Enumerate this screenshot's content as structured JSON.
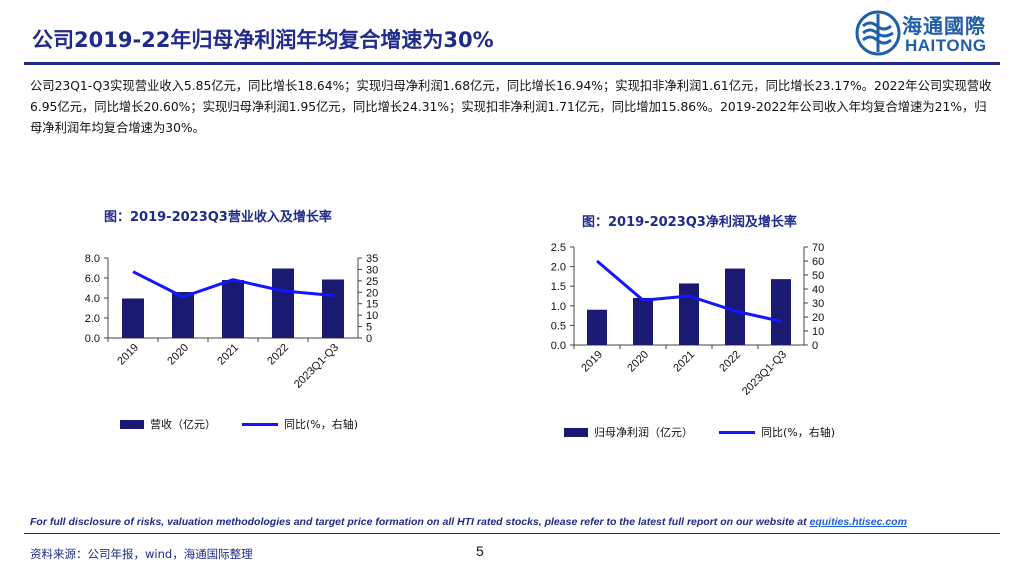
{
  "header": {
    "title": "公司2019-22年归母净利润年均复合增速为30%",
    "logo_cn": "海通國際",
    "logo_en": "HAITONG",
    "brand_color": "#1f2a8a",
    "logo_color": "#1f5fa8"
  },
  "body": {
    "paragraph": "公司23Q1-Q3实现营业收入5.85亿元，同比增长18.64%；实现归母净利润1.68亿元，同比增长16.94%；实现扣非净利润1.61亿元，同比增长23.17%。2022年公司实现营收6.95亿元，同比增长20.60%；实现归母净利润1.95亿元，同比增长24.31%；实现扣非净利润1.71亿元，同比增加15.86%。2019-2022年公司收入年均复合增速为21%，归母净利润年均复合增速为30%。"
  },
  "chart_data": [
    {
      "type": "bar",
      "title": "图：2019-2023Q3营业收入及增长率",
      "categories": [
        "2019",
        "2020",
        "2021",
        "2022",
        "2023Q1-Q3"
      ],
      "series": [
        {
          "name": "营收（亿元）",
          "type": "bar",
          "axis": "left",
          "values": [
            3.95,
            4.6,
            5.8,
            6.95,
            5.85
          ],
          "color": "#1a1a73"
        },
        {
          "name": "同比(%，右轴)",
          "type": "line",
          "axis": "right",
          "values": [
            29,
            18,
            25.5,
            20.6,
            18.6
          ],
          "color": "#1515ff"
        }
      ],
      "left_axis": {
        "min": 0,
        "max": 8,
        "ticks": [
          "0.0",
          "2.0",
          "4.0",
          "6.0",
          "8.0"
        ]
      },
      "right_axis": {
        "min": 0,
        "max": 35,
        "ticks": [
          "0",
          "5",
          "10",
          "15",
          "20",
          "25",
          "30",
          "35"
        ]
      },
      "legend": {
        "bar_label": "营收（亿元）",
        "line_label": "同比(%，右轴)"
      }
    },
    {
      "type": "bar",
      "title": "图：2019-2023Q3净利润及增长率",
      "categories": [
        "2019",
        "2020",
        "2021",
        "2022",
        "2023Q1-Q3"
      ],
      "series": [
        {
          "name": "归母净利润（亿元）",
          "type": "bar",
          "axis": "left",
          "values": [
            0.9,
            1.2,
            1.57,
            1.95,
            1.68
          ],
          "color": "#1a1a73"
        },
        {
          "name": "同比(%，右轴)",
          "type": "line",
          "axis": "right",
          "values": [
            60,
            32,
            35,
            24.3,
            16.9
          ],
          "color": "#1515ff"
        }
      ],
      "left_axis": {
        "min": 0,
        "max": 2.5,
        "ticks": [
          "0.0",
          "0.5",
          "1.0",
          "1.5",
          "2.0",
          "2.5"
        ]
      },
      "right_axis": {
        "min": 0,
        "max": 70,
        "ticks": [
          "0",
          "10",
          "20",
          "30",
          "40",
          "50",
          "60",
          "70"
        ]
      },
      "legend": {
        "bar_label": "归母净利润（亿元）",
        "line_label": "同比(%，右轴)"
      }
    }
  ],
  "footer": {
    "disclaimer_text": "For full disclosure of risks, valuation methodologies and target price formation on all HTI rated stocks, please refer to the latest full report on our website at ",
    "disclaimer_link": "equities.htisec.com",
    "source": "资料来源：公司年报，wind，海通国际整理",
    "page_number": "5"
  }
}
